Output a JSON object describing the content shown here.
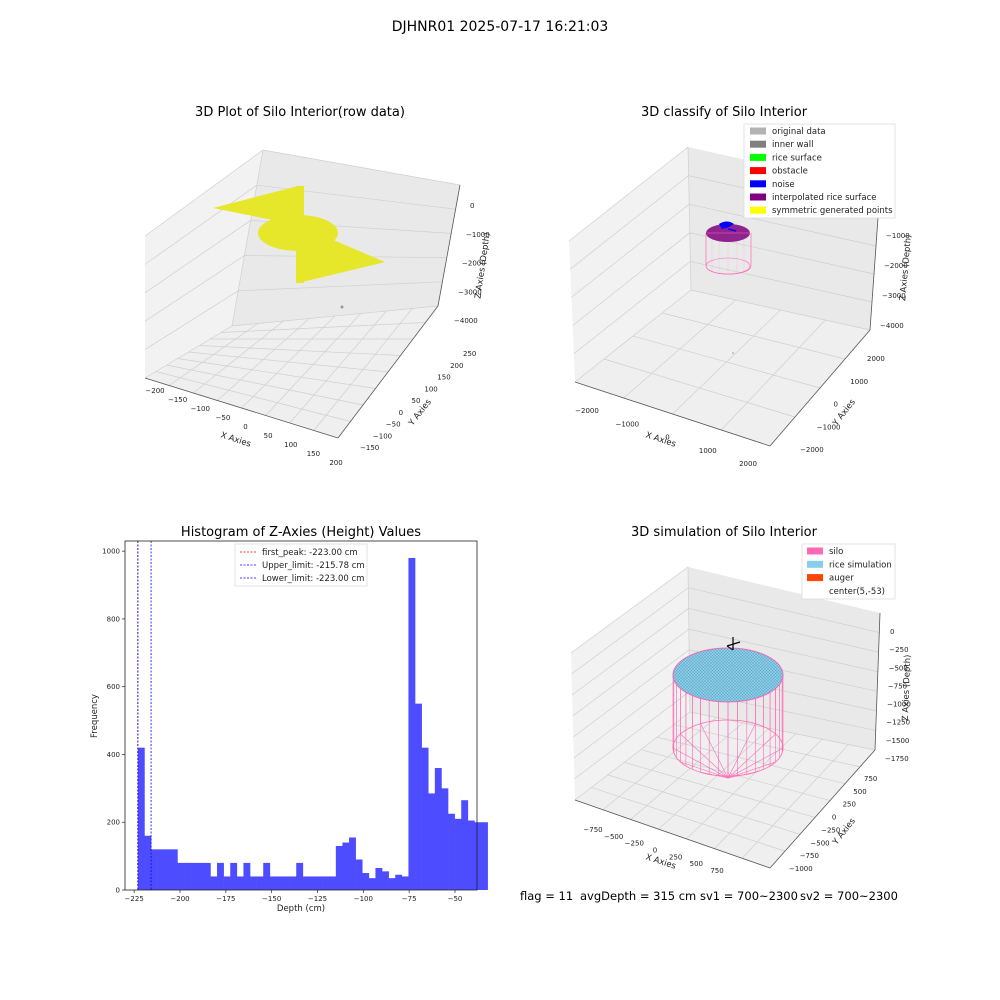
{
  "suptitle": "DJHNR01 2025-07-17 16:21:03",
  "status": {
    "flag": "flag = 11",
    "avg_depth": "avgDepth = 315 cm",
    "sv1": "sv1 = 700~2300",
    "sv2": "sv2 = 700~2300"
  },
  "colors": {
    "yellow": "#e6e62a",
    "gray_light": "#b3b3b3",
    "gray_dark": "#7f7f7f",
    "green": "#00ff00",
    "red": "#ff0000",
    "blue": "#0000ff",
    "purple": "#800080",
    "sym_yellow": "#ffff00",
    "hist_blue": "#4d4dff",
    "pink": "#ff69b4",
    "skyblue": "#87ceeb",
    "orange": "#ff4500"
  },
  "chart_data": [
    {
      "type": "scatter",
      "subtype": "3d",
      "title": "3D Plot of Silo Interior(row data)",
      "xlabel": "X Axies",
      "ylabel": "Y Axies",
      "zlabel": "Z Axies (Depth)",
      "x_ticks": [
        "−200",
        "−150",
        "−100",
        "−50",
        "0",
        "50",
        "100",
        "150",
        "200"
      ],
      "y_ticks": [
        "−150",
        "−100",
        "−50",
        "0",
        "50",
        "100",
        "150",
        "200",
        "250"
      ],
      "z_ticks": [
        "0",
        "−1000",
        "−2000",
        "−3000",
        "−4000"
      ],
      "xlim": [
        -200,
        200
      ],
      "ylim": [
        -150,
        250
      ],
      "zlim": [
        -4000,
        0
      ],
      "grid": true,
      "series_color": "#e6e62a"
    },
    {
      "type": "scatter",
      "subtype": "3d",
      "title": "3D classify of Silo Interior",
      "xlabel": "X Axies",
      "ylabel": "Y Axies",
      "zlabel": "Z Axies (Depth)",
      "x_ticks": [
        "−2000",
        "−1000",
        "0",
        "1000",
        "2000"
      ],
      "y_ticks": [
        "−2000",
        "−1000",
        "0",
        "1000",
        "2000"
      ],
      "z_ticks": [
        "0",
        "−1000",
        "−2000",
        "−3000",
        "−4000"
      ],
      "xlim": [
        -2000,
        2000
      ],
      "ylim": [
        -2000,
        2000
      ],
      "zlim": [
        -4000,
        0
      ],
      "grid": true,
      "legend": [
        {
          "label": "original data",
          "color": "#b3b3b3"
        },
        {
          "label": "inner wall",
          "color": "#7f7f7f"
        },
        {
          "label": "rice surface",
          "color": "#00ff00"
        },
        {
          "label": "obstacle",
          "color": "#ff0000"
        },
        {
          "label": "noise",
          "color": "#0000ff"
        },
        {
          "label": "interpolated rice surface",
          "color": "#800080"
        },
        {
          "label": "symmetric generated points",
          "color": "#ffff00"
        }
      ],
      "legend_position": "top-right"
    },
    {
      "type": "bar",
      "subtype": "histogram",
      "title": "Histogram of Z-Axies (Height) Values",
      "xlabel": "Depth (cm)",
      "ylabel": "Frequency",
      "x_ticks": [
        -225,
        -200,
        -175,
        -150,
        -125,
        -100,
        -75,
        -50
      ],
      "y_ticks": [
        0,
        200,
        400,
        600,
        800,
        1000
      ],
      "xlim": [
        -230,
        -38
      ],
      "ylim": [
        0,
        1030
      ],
      "bin_start": -223,
      "bin_width": 3.6,
      "values": [
        420,
        160,
        120,
        120,
        120,
        120,
        80,
        80,
        80,
        80,
        80,
        40,
        80,
        40,
        80,
        40,
        80,
        40,
        40,
        80,
        40,
        40,
        40,
        40,
        80,
        40,
        40,
        40,
        40,
        40,
        130,
        140,
        155,
        90,
        50,
        35,
        65,
        55,
        35,
        45,
        40,
        980,
        550,
        420,
        285,
        360,
        300,
        225,
        210,
        265,
        205,
        200,
        200
      ],
      "bar_color": "#4d4dff",
      "vlines": [
        {
          "label": "first_peak: -223.00 cm",
          "x": -223.0,
          "color": "#ff0000"
        },
        {
          "label": "Upper_limit: -215.78 cm",
          "x": -215.78,
          "color": "#0000ff"
        },
        {
          "label": "Lower_limit: -223.00 cm",
          "x": -223.0,
          "color": "#0000ff"
        }
      ],
      "legend_position": "top-center"
    },
    {
      "type": "scatter",
      "subtype": "3d",
      "title": "3D simulation of Silo Interior",
      "xlabel": "X Axies",
      "ylabel": "Y Axies",
      "zlabel": "Z Axies (Depth)",
      "x_ticks": [
        "−750",
        "−500",
        "−250",
        "0",
        "250",
        "500",
        "750"
      ],
      "y_ticks": [
        "−1000",
        "−750",
        "−500",
        "−250",
        "0",
        "250",
        "500",
        "750"
      ],
      "z_ticks": [
        "0",
        "−250",
        "−500",
        "−750",
        "−1000",
        "−1250",
        "−1500",
        "−1750"
      ],
      "xlim": [
        -900,
        900
      ],
      "ylim": [
        -1000,
        900
      ],
      "zlim": [
        -1750,
        100
      ],
      "grid": true,
      "legend": [
        {
          "label": "silo",
          "color": "#ff69b4"
        },
        {
          "label": "rice simulation",
          "color": "#87ceeb"
        },
        {
          "label": "auger",
          "color": "#ff4500"
        },
        {
          "label": "center(5,-53)",
          "color": ""
        }
      ],
      "legend_position": "top-right"
    }
  ]
}
